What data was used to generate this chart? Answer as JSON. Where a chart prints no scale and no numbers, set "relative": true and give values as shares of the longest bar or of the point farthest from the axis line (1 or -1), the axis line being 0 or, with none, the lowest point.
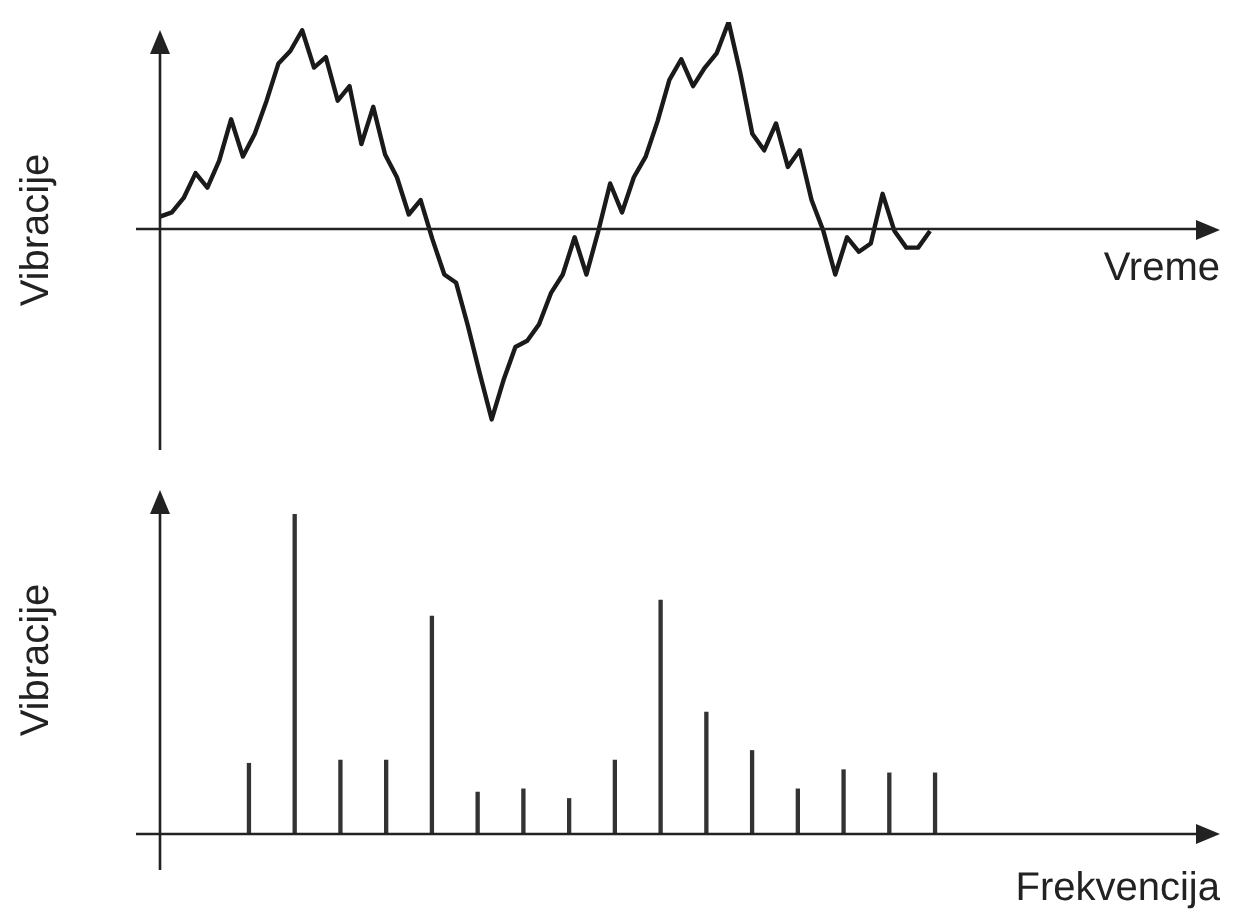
{
  "chart_data": [
    {
      "type": "line",
      "relative": true,
      "xlabel": "Vreme",
      "ylabel": "Vibracije",
      "color": "#1a1a1a",
      "categories": [
        null,
        null,
        null,
        null,
        null,
        null,
        null,
        null,
        null,
        null,
        null,
        null,
        null,
        null,
        null,
        null,
        null,
        null,
        null,
        null,
        null,
        null,
        null,
        null,
        null,
        null,
        null,
        null,
        null,
        null,
        null,
        null,
        null,
        null,
        null,
        null,
        null,
        null,
        null,
        null,
        null,
        null,
        null,
        null,
        null,
        null,
        null,
        null,
        null,
        null,
        null,
        null,
        null,
        null,
        null,
        null,
        null,
        null,
        null,
        null,
        null,
        null,
        null,
        null,
        null,
        null
      ],
      "values": [
        0.06,
        0.08,
        0.15,
        0.27,
        0.2,
        0.33,
        0.53,
        0.35,
        0.46,
        0.62,
        0.8,
        0.86,
        0.96,
        0.78,
        0.83,
        0.62,
        0.69,
        0.41,
        0.59,
        0.36,
        0.25,
        0.07,
        0.14,
        -0.05,
        -0.22,
        -0.26,
        -0.47,
        -0.7,
        -0.92,
        -0.73,
        -0.57,
        -0.54,
        -0.46,
        -0.31,
        -0.22,
        -0.04,
        -0.22,
        -0.01,
        0.22,
        0.08,
        0.25,
        0.35,
        0.52,
        0.72,
        0.82,
        0.69,
        0.78,
        0.85,
        1,
        0.75,
        0.46,
        0.38,
        0.51,
        0.3,
        0.38,
        0.14,
        -0.01,
        -0.22,
        -0.04,
        -0.11,
        -0.07,
        0.17,
        -0.01,
        -0.09,
        -0.09,
        -0.01
      ]
    },
    {
      "type": "bar",
      "relative": true,
      "xlabel": "Frekvencija",
      "ylabel": "Vibracije",
      "color": "#333333",
      "categories": [
        null,
        null,
        null,
        null,
        null,
        null,
        null,
        null,
        null,
        null,
        null,
        null,
        null,
        null,
        null,
        null
      ],
      "values": [
        0.22,
        1,
        0.23,
        0.23,
        0.68,
        0.13,
        0.14,
        0.11,
        0.23,
        0.73,
        0.38,
        0.26,
        0.14,
        0.2,
        0.19,
        0.19
      ]
    }
  ]
}
